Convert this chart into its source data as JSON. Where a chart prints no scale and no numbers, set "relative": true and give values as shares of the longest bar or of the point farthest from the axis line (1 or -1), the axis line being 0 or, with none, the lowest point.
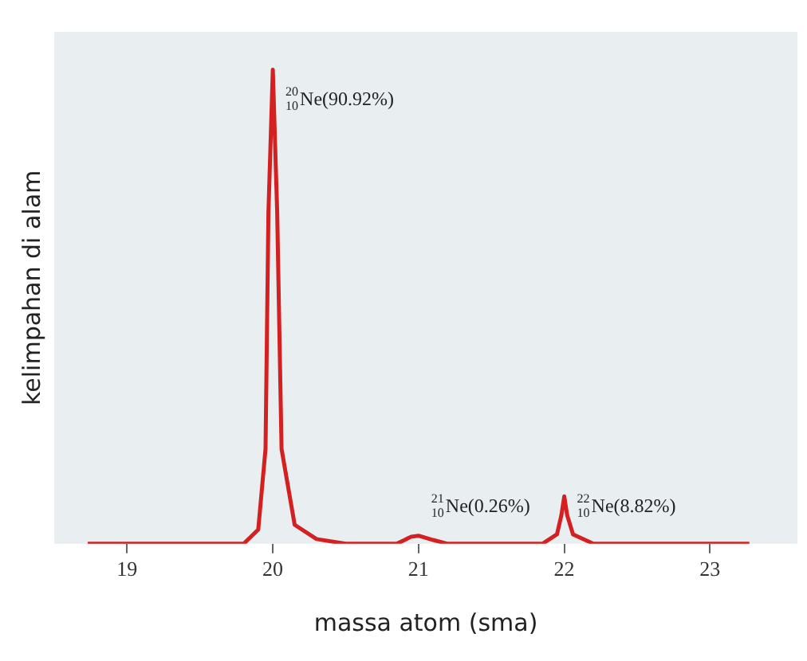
{
  "chart_data": {
    "type": "line",
    "relative": true,
    "xlabel": "massa atom (sma)",
    "ylabel": "kelimpahan di alam",
    "xlim": [
      18.5,
      23.6
    ],
    "xticks": [
      19,
      20,
      21,
      22,
      23
    ],
    "grid": false,
    "marker": "none",
    "line_style": "solid",
    "series": [
      {
        "color": "#d42020",
        "x": [
          18.73,
          19.8,
          19.9,
          19.95,
          19.97,
          20,
          20.03,
          20.06,
          20.15,
          20.3,
          20.5,
          20.85,
          20.95,
          21,
          21.1,
          21.2,
          21.85,
          21.95,
          21.98,
          22,
          22.02,
          22.06,
          22.2,
          23.27
        ],
        "values": [
          0,
          0,
          0.03,
          0.2,
          0.7,
          1,
          0.7,
          0.2,
          0.04,
          0.01,
          0,
          0,
          0.015,
          0.017,
          0.008,
          0,
          0,
          0.02,
          0.06,
          0.1,
          0.06,
          0.02,
          0,
          0
        ]
      }
    ],
    "annotations": [
      {
        "text": "$^{20}$$_{10}$Ne(90.92%)",
        "x": 20,
        "y": 1
      },
      {
        "text": "$^{21}$$_{10}$Ne(0.26%)",
        "x": 21,
        "y": 0.017
      },
      {
        "text": "$^{22}$$_{10}$Ne(8.82%)",
        "x": 22,
        "y": 0.1
      }
    ]
  }
}
